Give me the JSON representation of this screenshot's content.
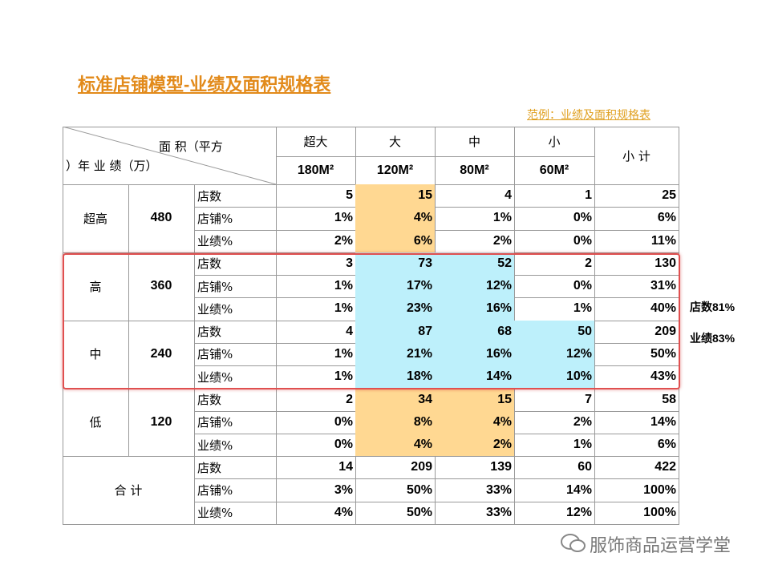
{
  "header": {
    "title": "标准店铺模型-业绩及面积规格表",
    "link": "范例：业绩及面积规格表"
  },
  "table": {
    "corner": [
      "面 积（平方",
      "）年 业 绩（万）"
    ],
    "columns": [
      "超大",
      "大",
      "中",
      "小"
    ],
    "sizes": [
      "180M²",
      "120M²",
      "80M²",
      "60M²"
    ],
    "subtotal": "小 计",
    "groups": [
      {
        "label": "超高",
        "value": "480",
        "rows": [
          {
            "metric": "店数",
            "values": [
              "5",
              "15",
              "4",
              "1",
              "25"
            ]
          },
          {
            "metric": "店铺%",
            "values": [
              "1%",
              "4%",
              "1%",
              "0%",
              "6%"
            ]
          },
          {
            "metric": "业绩%",
            "values": [
              "2%",
              "6%",
              "2%",
              "0%",
              "11%"
            ]
          }
        ]
      },
      {
        "label": "高",
        "value": "360",
        "rows": [
          {
            "metric": "店数",
            "values": [
              "3",
              "73",
              "52",
              "2",
              "130"
            ]
          },
          {
            "metric": "店铺%",
            "values": [
              "1%",
              "17%",
              "12%",
              "0%",
              "31%"
            ]
          },
          {
            "metric": "业绩%",
            "values": [
              "1%",
              "23%",
              "16%",
              "1%",
              "40%"
            ]
          }
        ]
      },
      {
        "label": "中",
        "value": "240",
        "rows": [
          {
            "metric": "店数",
            "values": [
              "4",
              "87",
              "68",
              "50",
              "209"
            ]
          },
          {
            "metric": "店铺%",
            "values": [
              "1%",
              "21%",
              "16%",
              "12%",
              "50%"
            ]
          },
          {
            "metric": "业绩%",
            "values": [
              "1%",
              "18%",
              "14%",
              "10%",
              "43%"
            ]
          }
        ]
      },
      {
        "label": "低",
        "value": "120",
        "rows": [
          {
            "metric": "店数",
            "values": [
              "2",
              "34",
              "15",
              "7",
              "58"
            ]
          },
          {
            "metric": "店铺%",
            "values": [
              "0%",
              "8%",
              "4%",
              "2%",
              "14%"
            ]
          },
          {
            "metric": "业绩%",
            "values": [
              "0%",
              "4%",
              "2%",
              "1%",
              "6%"
            ]
          }
        ]
      },
      {
        "label": "合 计",
        "rows": [
          {
            "metric": "店数",
            "values": [
              "14",
              "209",
              "139",
              "60",
              "422"
            ]
          },
          {
            "metric": "店铺%",
            "values": [
              "3%",
              "50%",
              "33%",
              "14%",
              "100%"
            ]
          },
          {
            "metric": "业绩%",
            "values": [
              "4%",
              "50%",
              "33%",
              "12%",
              "100%"
            ]
          }
        ]
      }
    ]
  },
  "notes": [
    "店数81%",
    "业绩83%"
  ],
  "watermark": "服饰商品运营学堂"
}
